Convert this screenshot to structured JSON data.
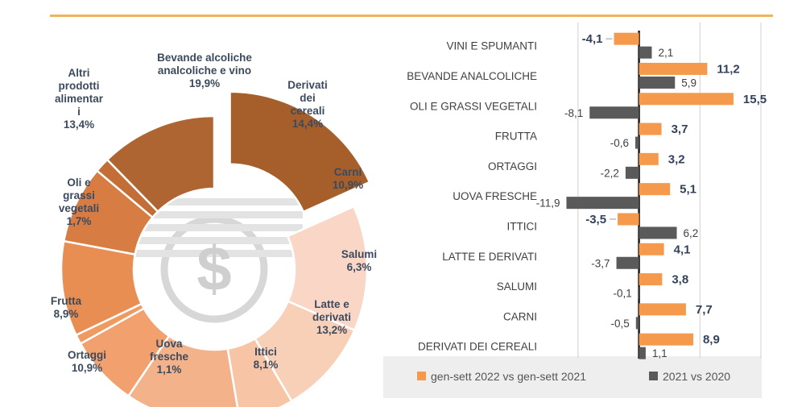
{
  "chart_data": [
    {
      "type": "pie",
      "variant": "donut",
      "slices": [
        {
          "name": "Bevande alcoliche analcoliche e vino",
          "label": [
            "Bevande alcoliche",
            "analcoliche e vino",
            "19,9%"
          ],
          "value": 19.9,
          "color": "#a65f2b",
          "exploded": true
        },
        {
          "name": "Derivati dei cereali",
          "label": [
            "Derivati",
            "dei",
            "cereali",
            "14,4%"
          ],
          "value": 14.4,
          "color": "#f9d6c6"
        },
        {
          "name": "Carni",
          "label": [
            "Carni",
            "10,9%"
          ],
          "value": 10.9,
          "color": "#f8d0b8"
        },
        {
          "name": "Salumi",
          "label": [
            "Salumi",
            "6,3%"
          ],
          "value": 6.3,
          "color": "#f7c5a6"
        },
        {
          "name": "Latte e derivati",
          "label": [
            "Latte e",
            "derivati",
            "13,2%"
          ],
          "value": 13.2,
          "color": "#f4b28a"
        },
        {
          "name": "Ittici",
          "label": [
            "Ittici",
            "8,1%"
          ],
          "value": 8.1,
          "color": "#f1a06e"
        },
        {
          "name": "Uova fresche",
          "label": [
            "Uova",
            "fresche",
            "1,1%"
          ],
          "value": 1.1,
          "color": "#ef9a60"
        },
        {
          "name": "Ortaggi",
          "label": [
            "Ortaggi",
            "10,9%"
          ],
          "value": 10.9,
          "color": "#e88e52"
        },
        {
          "name": "Frutta",
          "label": [
            "Frutta",
            "8,9%"
          ],
          "value": 8.9,
          "color": "#d77c43"
        },
        {
          "name": "Oli e grassi vegetali",
          "label": [
            "Oli e",
            "grassi",
            "vegetali",
            "1,7%"
          ],
          "value": 1.7,
          "color": "#c26e36"
        },
        {
          "name": "Altri prodotti alimentari",
          "label": [
            "Altri",
            "prodotti",
            "alimentar",
            "i",
            "13,4%"
          ],
          "value": 13.4,
          "color": "#ae6531"
        }
      ]
    },
    {
      "type": "bar",
      "orientation": "horizontal",
      "categories": [
        "VINI E SPUMANTI",
        "BEVANDE ANALCOLICHE",
        "OLI E GRASSI VEGETALI",
        "FRUTTA",
        "ORTAGGI",
        "UOVA FRESCHE",
        "ITTICI",
        "LATTE E DERIVATI",
        "SALUMI",
        "CARNI",
        "DERIVATI DEI CEREALI"
      ],
      "series": [
        {
          "name": "gen-sett 2022 vs gen-sett 2021",
          "color": "#f59a4c",
          "values": [
            -4.1,
            11.2,
            15.5,
            3.7,
            3.2,
            5.1,
            -3.5,
            4.1,
            3.8,
            7.7,
            8.9
          ],
          "labels": [
            "-4,1",
            "11,2",
            "15,5",
            "3,7",
            "3,2",
            "5,1",
            "-3,5",
            "4,1",
            "3,8",
            "7,7",
            "8,9"
          ]
        },
        {
          "name": "2021 vs 2020",
          "color": "#5a5a5a",
          "values": [
            2.1,
            5.9,
            -8.1,
            -0.6,
            -2.2,
            -11.9,
            6.2,
            -3.7,
            -0.1,
            -0.5,
            1.1
          ],
          "labels": [
            "2,1",
            "5,9",
            "-8,1",
            "-0,6",
            "-2,2",
            "-11,9",
            "6,2",
            "-3,7",
            "-0,1",
            "-0,5",
            "1,1"
          ]
        }
      ],
      "xlim": [
        -15,
        20
      ],
      "gridlines": [
        -10,
        10,
        20
      ],
      "legend": "bottom"
    }
  ]
}
